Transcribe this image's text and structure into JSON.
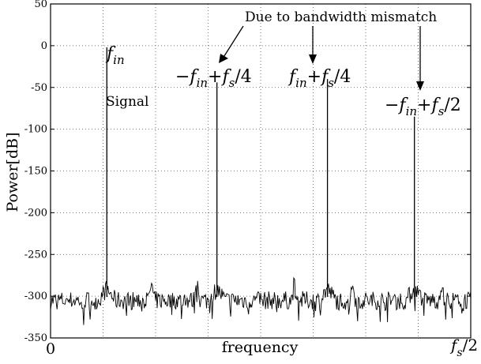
{
  "chart_data": {
    "type": "line",
    "xlabel": "frequency",
    "ylabel": "Power[dB]",
    "ylim": [
      -350,
      50
    ],
    "yticks": [
      50,
      0,
      -50,
      -100,
      -150,
      -200,
      -250,
      -300,
      -350
    ],
    "xticks": [
      "0"
    ],
    "x_end_label": {
      "base": "f",
      "sub": "s",
      "tail": "/2"
    },
    "grid": true,
    "grid_style": "dotted",
    "noise_floor_db": -305,
    "spurs": [
      {
        "id": "fin",
        "x": 0.134,
        "db": -2,
        "label_main": "f",
        "label_sub": "in",
        "label_extra": "",
        "sublabel": "Signal"
      },
      {
        "id": "img1",
        "x": 0.396,
        "db": -44,
        "label_main": "−f",
        "label_sub": "in",
        "label_extra": "+f_s/4",
        "sublabel": ""
      },
      {
        "id": "img2",
        "x": 0.659,
        "db": -40,
        "label_main": "f",
        "label_sub": "in",
        "label_extra": "+f_s/4",
        "sublabel": ""
      },
      {
        "id": "img3",
        "x": 0.866,
        "db": -85,
        "label_main": "−f",
        "label_sub": "in",
        "label_extra": "+f_s/2",
        "sublabel": ""
      }
    ],
    "annotation": "Due to bandwidth mismatch",
    "colors": {
      "line": "#000000",
      "grid": "#555555",
      "background": "#ffffff"
    }
  }
}
